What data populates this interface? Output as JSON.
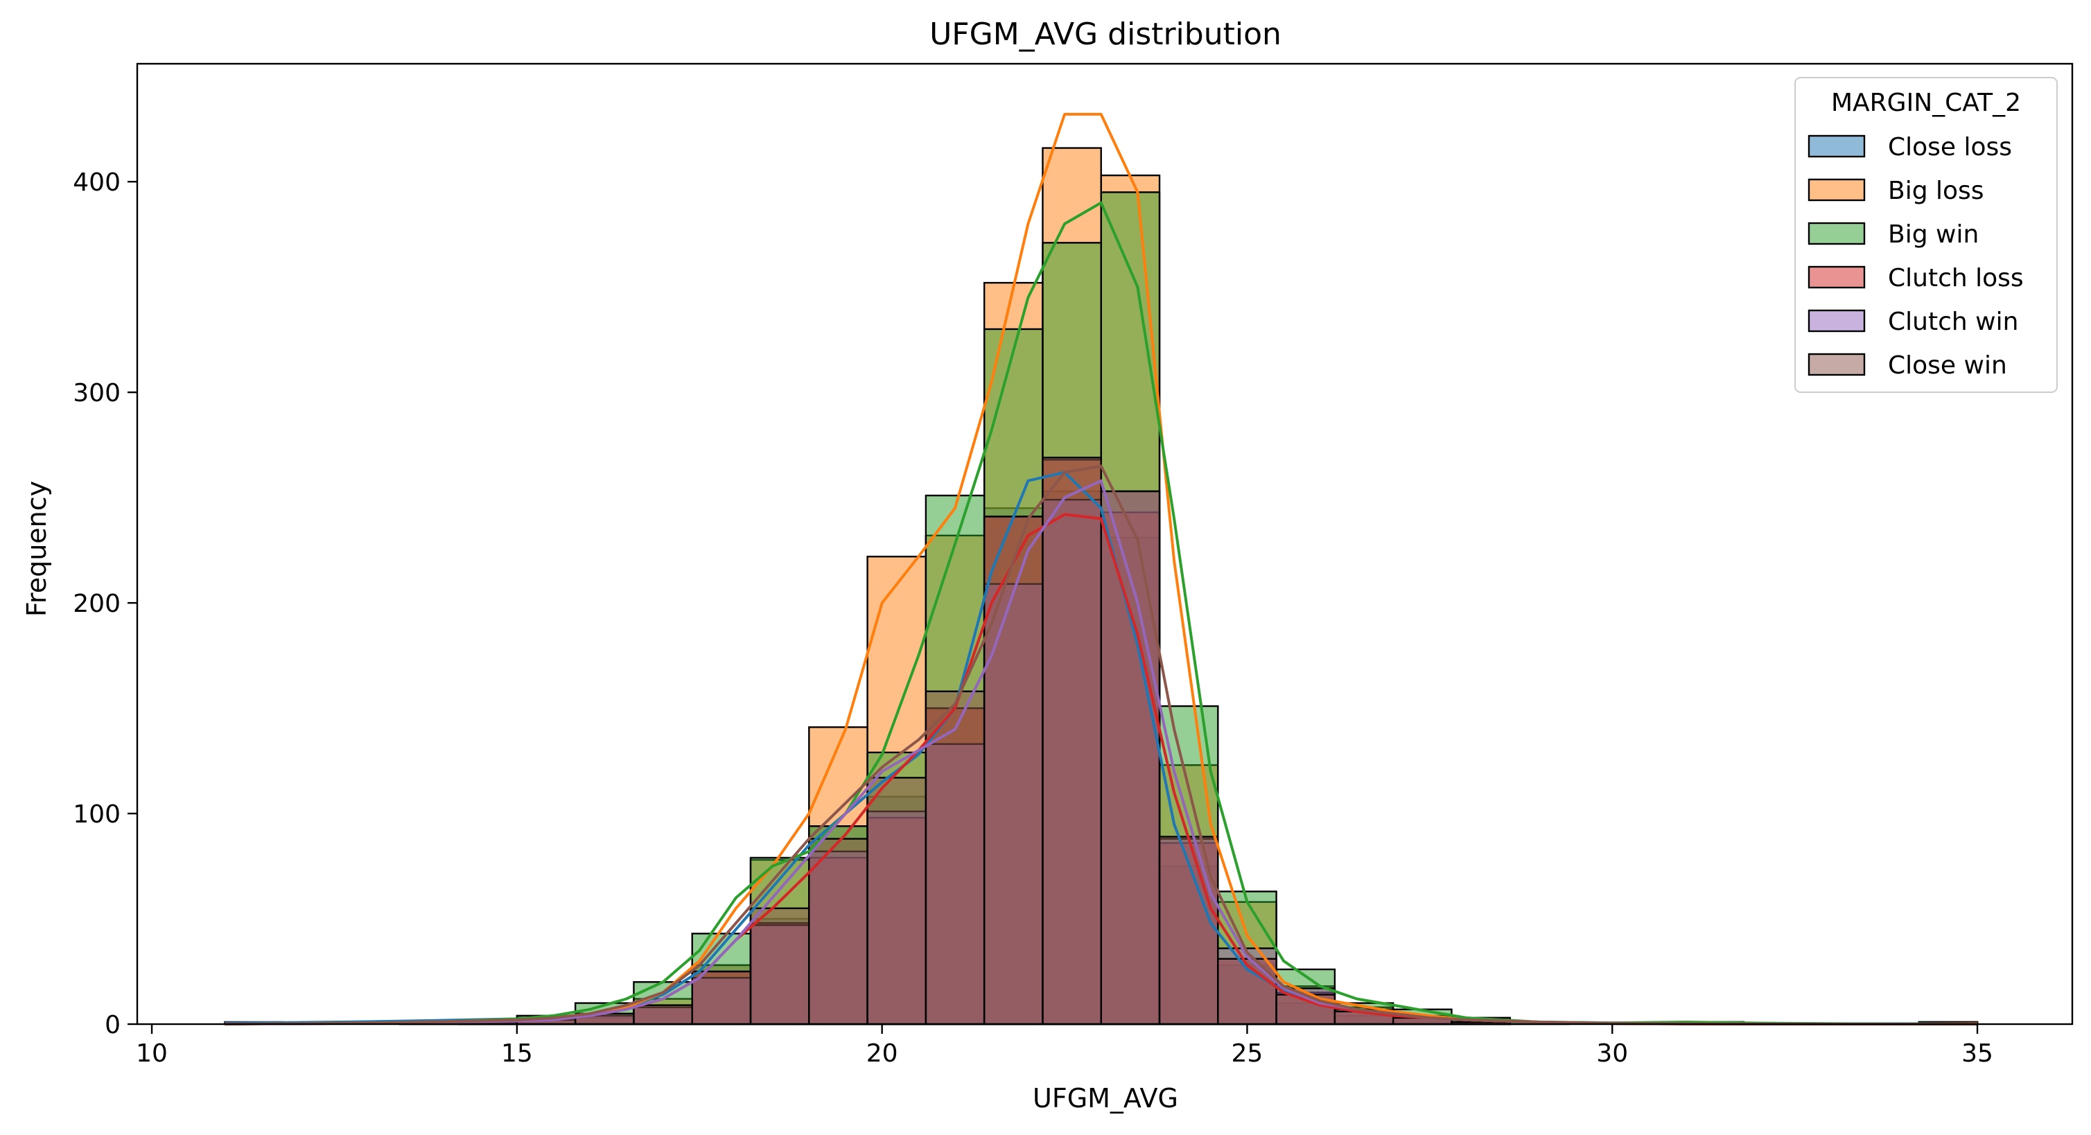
{
  "chart_data": {
    "type": "histogram",
    "title": "UFGM_AVG distribution",
    "xlabel": "UFGM_AVG",
    "ylabel": "Frequency",
    "xlim": [
      9.8,
      36.3
    ],
    "ylim": [
      0,
      456
    ],
    "xticks": [
      10,
      15,
      20,
      25,
      30,
      35
    ],
    "yticks": [
      0,
      100,
      200,
      300,
      400
    ],
    "bins": [
      11.0,
      11.8,
      12.6,
      13.4,
      14.2,
      15.0,
      15.8,
      16.6,
      17.4,
      18.2,
      19.0,
      19.8,
      20.6,
      21.4,
      22.2,
      23.0,
      23.8,
      24.6,
      25.4,
      26.2,
      27.0,
      27.8,
      28.6,
      29.4,
      30.2,
      31.0,
      31.8,
      32.6,
      33.4,
      34.2,
      35.0
    ],
    "kde_x": [
      11,
      12,
      13,
      14,
      15,
      15.5,
      16,
      16.5,
      17,
      17.5,
      18,
      18.5,
      19,
      19.5,
      20,
      20.5,
      21,
      21.5,
      22,
      22.5,
      23,
      23.5,
      24,
      24.5,
      25,
      25.5,
      26,
      26.5,
      27,
      27.5,
      28,
      29,
      30,
      31,
      32,
      33,
      34,
      35
    ],
    "legend": {
      "title": "MARGIN_CAT_2",
      "position": "upper right"
    },
    "series": [
      {
        "name": "Close loss",
        "color": "#1f77b4",
        "counts": [
          1,
          0,
          0,
          1,
          2,
          3,
          5,
          9,
          28,
          50,
          94,
          108,
          150,
          245,
          253,
          231,
          75,
          28,
          10,
          4,
          3,
          1,
          0,
          0,
          0,
          1,
          0,
          0,
          0,
          1
        ],
        "kde": [
          0.5,
          0.8,
          1.2,
          1.8,
          2.5,
          3,
          5,
          8,
          14,
          25,
          45,
          65,
          85,
          100,
          115,
          128,
          150,
          215,
          258,
          262,
          245,
          180,
          95,
          48,
          26,
          16,
          10,
          7,
          5,
          3,
          2,
          1,
          0.6,
          0.4,
          0.3,
          0.2,
          0.2,
          0.1
        ]
      },
      {
        "name": "Big loss",
        "color": "#ff7f0e",
        "counts": [
          0,
          0,
          0,
          0,
          1,
          2,
          3,
          12,
          28,
          78,
          141,
          222,
          232,
          352,
          416,
          403,
          123,
          58,
          18,
          8,
          4,
          3,
          0,
          0,
          0,
          0,
          0,
          0,
          0,
          1
        ],
        "kde": [
          0.1,
          0.2,
          0.5,
          1,
          2,
          3,
          5,
          8,
          15,
          30,
          55,
          75,
          100,
          140,
          200,
          222,
          245,
          305,
          380,
          432,
          432,
          395,
          220,
          95,
          42,
          20,
          12,
          9,
          6,
          4,
          2,
          1,
          0.3,
          0.1,
          0,
          0,
          0,
          0.2
        ]
      },
      {
        "name": "Big win",
        "color": "#2ca02c",
        "counts": [
          0,
          0,
          0,
          1,
          2,
          4,
          10,
          20,
          43,
          79,
          94,
          129,
          251,
          330,
          371,
          395,
          151,
          63,
          26,
          10,
          7,
          3,
          1,
          0,
          0,
          1,
          0,
          0,
          0,
          0
        ],
        "kde": [
          0.1,
          0.3,
          0.6,
          1.2,
          2.5,
          4,
          7,
          12,
          20,
          35,
          60,
          75,
          82,
          100,
          128,
          175,
          228,
          282,
          345,
          380,
          390,
          350,
          240,
          120,
          58,
          30,
          18,
          12,
          9,
          6,
          3,
          1,
          0.6,
          1,
          0.5,
          0.2,
          0.1,
          0
        ]
      },
      {
        "name": "Clutch loss",
        "color": "#d62728",
        "counts": [
          0,
          0,
          0,
          0,
          1,
          2,
          4,
          8,
          25,
          48,
          79,
          98,
          150,
          241,
          268,
          243,
          86,
          31,
          15,
          6,
          3,
          1,
          0,
          0,
          0,
          0,
          0,
          0,
          0,
          0
        ],
        "kde": [
          0.1,
          0.2,
          0.5,
          1,
          1.5,
          2,
          4,
          7,
          12,
          22,
          40,
          55,
          72,
          90,
          112,
          130,
          150,
          200,
          232,
          242,
          240,
          185,
          110,
          55,
          28,
          15,
          9,
          6,
          4,
          3,
          2,
          1,
          0.3,
          0.1,
          0,
          0,
          0,
          0
        ]
      },
      {
        "name": "Clutch win",
        "color": "#9467bd",
        "counts": [
          0,
          0,
          0,
          0,
          1,
          2,
          4,
          8,
          22,
          47,
          82,
          101,
          133,
          209,
          249,
          253,
          88,
          36,
          17,
          7,
          3,
          1,
          0,
          0,
          0,
          0,
          0,
          0,
          0,
          0
        ],
        "kde": [
          0.1,
          0.2,
          0.5,
          1,
          1.5,
          2,
          4,
          7,
          12,
          22,
          40,
          60,
          80,
          100,
          120,
          130,
          140,
          175,
          225,
          250,
          258,
          200,
          120,
          62,
          32,
          17,
          10,
          7,
          5,
          3,
          2,
          1,
          0.4,
          0.2,
          0.1,
          0,
          0,
          0
        ]
      },
      {
        "name": "Close win",
        "color": "#8c564b",
        "counts": [
          0,
          0,
          0,
          0,
          2,
          3,
          5,
          9,
          25,
          55,
          88,
          117,
          158,
          241,
          269,
          253,
          89,
          31,
          14,
          6,
          3,
          1,
          0,
          0,
          0,
          0,
          0,
          0,
          0,
          0
        ],
        "kde": [
          0.1,
          0.3,
          0.6,
          1.2,
          2,
          3,
          5,
          9,
          15,
          28,
          48,
          68,
          88,
          105,
          122,
          135,
          152,
          190,
          240,
          262,
          265,
          230,
          140,
          70,
          34,
          18,
          11,
          7,
          5,
          3,
          2,
          1,
          0.4,
          0.2,
          0.1,
          0,
          0,
          0
        ]
      }
    ]
  }
}
